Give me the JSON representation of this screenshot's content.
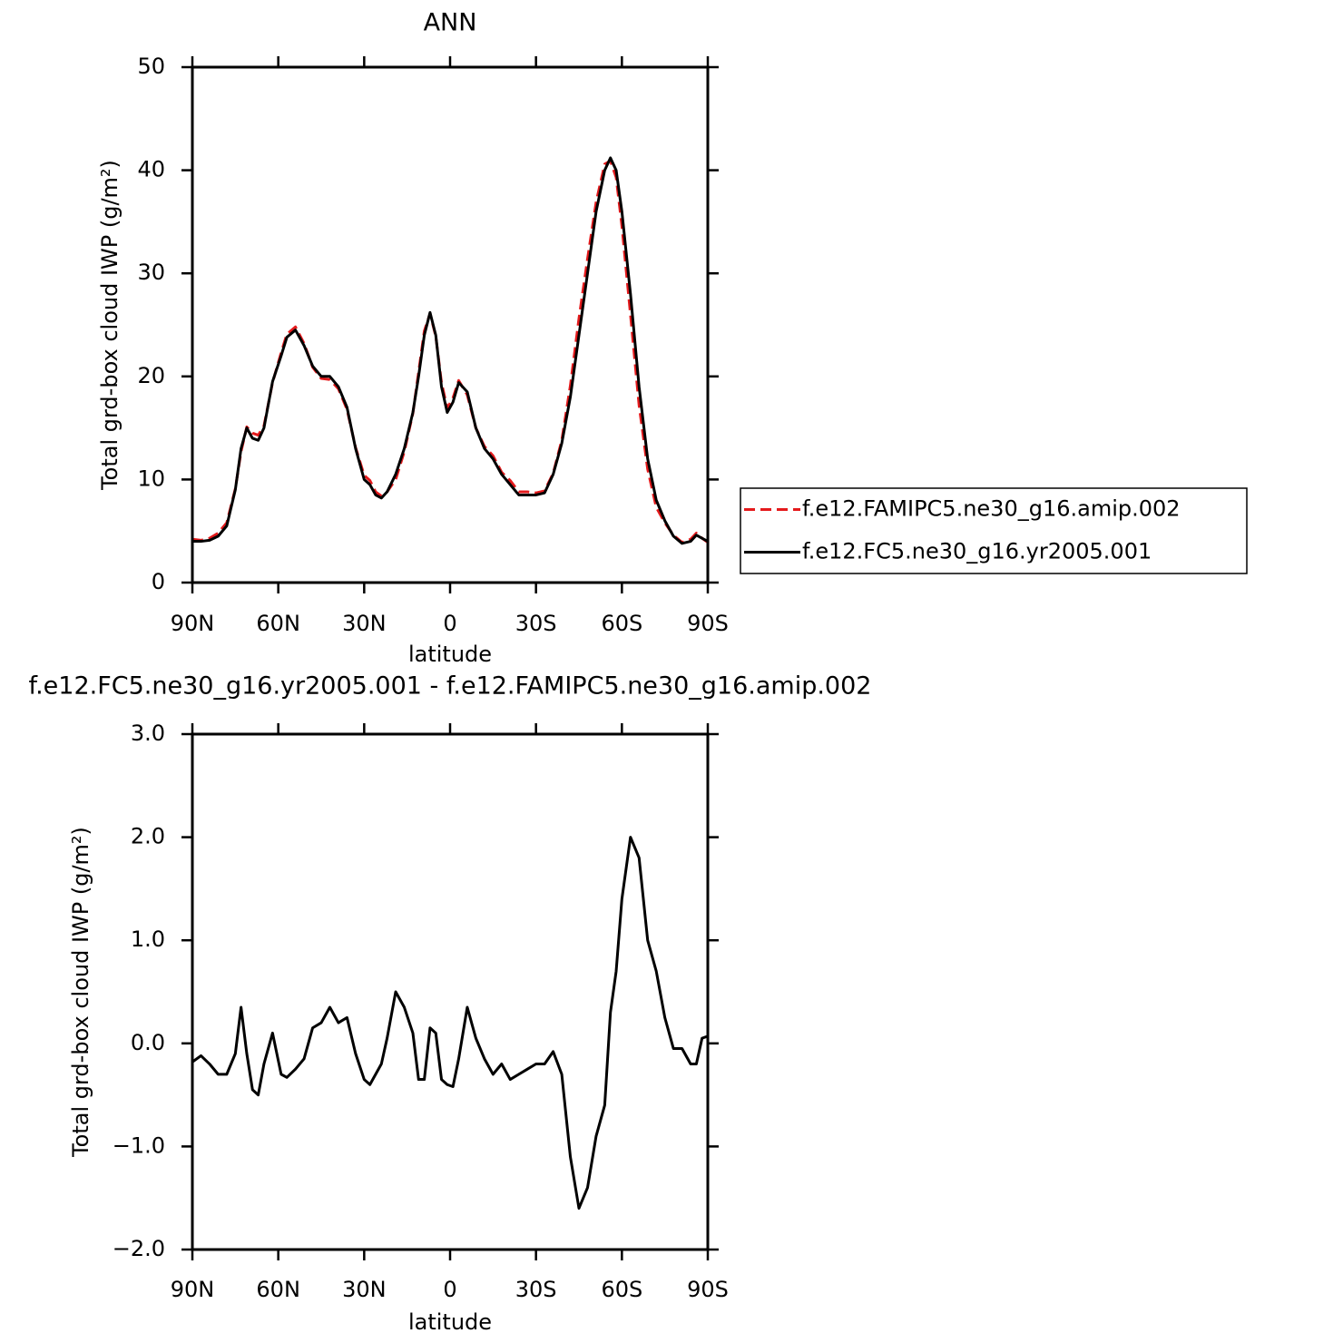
{
  "chart_data": [
    {
      "type": "line",
      "title": "ANN",
      "x_label": "latitude",
      "y_label": "Total grd-box cloud IWP (g/m²)",
      "x": [
        90,
        87,
        84,
        81,
        78,
        75,
        73,
        71,
        69,
        67,
        65,
        62,
        59,
        57,
        54,
        51,
        48,
        45,
        42,
        39,
        36,
        33,
        30,
        28,
        26,
        24,
        22,
        19,
        16,
        13,
        11,
        9,
        7,
        5,
        3,
        1,
        -1,
        -3,
        -6,
        -9,
        -12,
        -15,
        -18,
        -21,
        -24,
        -27,
        -30,
        -33,
        -36,
        -39,
        -42,
        -45,
        -48,
        -51,
        -54,
        -56,
        -58,
        -60,
        -63,
        -66,
        -69,
        -72,
        -75,
        -78,
        -81,
        -84,
        -86,
        -88,
        -90
      ],
      "xlim": [
        90,
        -90
      ],
      "xticks": [
        {
          "value": 90,
          "label": "90N"
        },
        {
          "value": 60,
          "label": "60N"
        },
        {
          "value": 30,
          "label": "30N"
        },
        0,
        {
          "value": -30,
          "label": "30S"
        },
        {
          "value": -60,
          "label": "60S"
        },
        {
          "value": -90,
          "label": "90S"
        }
      ],
      "ylim": [
        0,
        50
      ],
      "yticks": [
        0,
        10,
        20,
        30,
        40,
        50
      ],
      "legend": "right",
      "series": [
        {
          "name": "f.e12.FAMIPC5.ne30_g16.amip.002",
          "color": "#e41a1c",
          "linestyle": "dashed",
          "values": [
            4.2,
            4.1,
            4.3,
            4.8,
            5.8,
            9.1,
            12.7,
            15.1,
            14.5,
            14.3,
            15.2,
            19.4,
            22.3,
            24.1,
            24.8,
            23.2,
            20.9,
            19.8,
            19.7,
            18.8,
            16.8,
            13.1,
            10.4,
            9.9,
            8.8,
            8.4,
            8.8,
            10.0,
            12.7,
            16.4,
            20.4,
            24.4,
            26.1,
            23.9,
            19.4,
            16.9,
            17.9,
            19.6,
            18.2,
            15.0,
            13.2,
            12.3,
            10.7,
            9.9,
            8.8,
            8.8,
            8.7,
            8.9,
            10.6,
            13.8,
            19.1,
            25.6,
            31.4,
            36.9,
            40.6,
            40.9,
            39.3,
            34.6,
            26.0,
            17.2,
            11.0,
            7.3,
            5.8,
            4.6,
            3.9,
            4.2,
            4.8,
            4.3,
            3.9
          ]
        },
        {
          "name": "f.e12.FC5.ne30_g16.yr2005.001",
          "color": "#000000",
          "linestyle": "solid",
          "values": [
            4.0,
            4.0,
            4.1,
            4.5,
            5.5,
            9,
            13,
            15,
            14,
            13.8,
            15,
            19.5,
            22,
            23.8,
            24.5,
            23,
            21,
            20,
            20,
            19,
            17,
            13,
            10,
            9.5,
            8.5,
            8.2,
            8.8,
            10.5,
            13,
            16.5,
            20,
            24,
            26.2,
            24,
            19,
            16.5,
            17.5,
            19.4,
            18.5,
            15,
            13,
            12,
            10.5,
            9.5,
            8.5,
            8.5,
            8.5,
            8.7,
            10.5,
            13.5,
            18,
            24,
            30,
            36,
            40,
            41.2,
            40,
            36,
            28,
            19,
            12,
            8,
            6,
            4.5,
            3.8,
            4.0,
            4.6,
            4.3,
            4.0
          ]
        }
      ]
    },
    {
      "type": "line",
      "title": "f.e12.FC5.ne30_g16.yr2005.001 - f.e12.FAMIPC5.ne30_g16.amip.002",
      "x_label": "latitude",
      "y_label": "Total grd-box cloud IWP (g/m²)",
      "x": [
        90,
        87,
        84,
        81,
        78,
        75,
        73,
        71,
        69,
        67,
        65,
        62,
        59,
        57,
        54,
        51,
        48,
        45,
        42,
        39,
        36,
        33,
        30,
        28,
        26,
        24,
        22,
        19,
        16,
        13,
        11,
        9,
        7,
        5,
        3,
        1,
        -1,
        -3,
        -6,
        -9,
        -12,
        -15,
        -18,
        -21,
        -24,
        -27,
        -30,
        -33,
        -36,
        -39,
        -42,
        -45,
        -48,
        -51,
        -54,
        -56,
        -58,
        -60,
        -63,
        -66,
        -69,
        -72,
        -75,
        -78,
        -81,
        -84,
        -86,
        -88,
        -90
      ],
      "xlim": [
        90,
        -90
      ],
      "xticks": [
        {
          "value": 90,
          "label": "90N"
        },
        {
          "value": 60,
          "label": "60N"
        },
        {
          "value": 30,
          "label": "30N"
        },
        0,
        {
          "value": -30,
          "label": "30S"
        },
        {
          "value": -60,
          "label": "60S"
        },
        {
          "value": -90,
          "label": "90S"
        }
      ],
      "ylim": [
        -2,
        3
      ],
      "yticks": [
        {
          "value": -2,
          "label": "−2.0"
        },
        {
          "value": -1,
          "label": "−1.0"
        },
        {
          "value": 0,
          "label": "0.0"
        },
        {
          "value": 1,
          "label": "1.0"
        },
        {
          "value": 2,
          "label": "2.0"
        },
        {
          "value": 3,
          "label": "3.0"
        }
      ],
      "series": [
        {
          "color": "#000000",
          "linestyle": "solid",
          "values": [
            -0.18,
            -0.12,
            -0.2,
            -0.3,
            -0.3,
            -0.1,
            0.35,
            -0.1,
            -0.45,
            -0.5,
            -0.2,
            0.1,
            -0.3,
            -0.33,
            -0.25,
            -0.15,
            0.15,
            0.2,
            0.35,
            0.2,
            0.25,
            -0.1,
            -0.35,
            -0.4,
            -0.3,
            -0.2,
            0.05,
            0.5,
            0.35,
            0.1,
            -0.35,
            -0.35,
            0.15,
            0.1,
            -0.35,
            -0.4,
            -0.42,
            -0.15,
            0.35,
            0.05,
            -0.15,
            -0.3,
            -0.2,
            -0.35,
            -0.3,
            -0.25,
            -0.2,
            -0.2,
            -0.08,
            -0.3,
            -1.1,
            -1.6,
            -1.4,
            -0.9,
            -0.6,
            0.3,
            0.7,
            1.4,
            2.0,
            1.8,
            1.0,
            0.7,
            0.25,
            -0.05,
            -0.05,
            -0.2,
            -0.2,
            0.05,
            0.07
          ]
        }
      ]
    }
  ]
}
